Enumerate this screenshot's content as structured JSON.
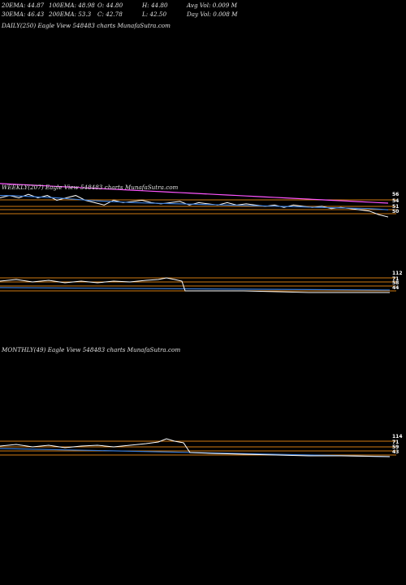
{
  "header": {
    "row1": {
      "ema20": "20EMA: 44.87",
      "ema100": "100EMA: 48.98",
      "open": "O: 44.80",
      "high": "H: 44.80",
      "avg_vol": "Avg Vol: 0.009 M"
    },
    "row2": {
      "ema30": "30EMA: 46.43",
      "ema200": "200EMA: 53.3",
      "close": "C: 42.78",
      "low": "L: 42.50",
      "day_vol": "Day Vol: 0.008 M"
    }
  },
  "panels": {
    "daily": {
      "title": "DAILY(250) Eagle   View  548483 charts MunafaSutra.com"
    },
    "weekly": {
      "title": "WEEKLY(207) Eagle   View  548483 charts MunafaSutra.com"
    },
    "monthly": {
      "title": "MONTHLY(49) Eagle   View  548483 charts MunafaSutra.com"
    }
  },
  "colors": {
    "background": "#000000",
    "price": "#ffffff",
    "ema_fast": "#3a7bd5",
    "ema_slow": "#8fb3ff",
    "ema_long": "#ff55ff",
    "support": "#d07a12"
  },
  "chart_data": [
    {
      "type": "line",
      "name": "DAILY(250)",
      "series": []
    },
    {
      "type": "line",
      "name": "WEEKLY(207)",
      "x": [
        0,
        5,
        10,
        15,
        20,
        25,
        30,
        35,
        40,
        45,
        50,
        55,
        60,
        65,
        70,
        75,
        80,
        85,
        90,
        95,
        100,
        105,
        110,
        115,
        120,
        125,
        130,
        135,
        140,
        145,
        150,
        155,
        160,
        165,
        170,
        175,
        180,
        185,
        190,
        195,
        200,
        205
      ],
      "series": [
        {
          "values": [
            52,
            53,
            52,
            53.5,
            52,
            53,
            51,
            52,
            53,
            51,
            50,
            49,
            51,
            50,
            50.5,
            51,
            50,
            49.5,
            50,
            50.5,
            49,
            50,
            49.5,
            49,
            50,
            49,
            49.5,
            49,
            48.5,
            49,
            48,
            49,
            48.5,
            48,
            48.5,
            47.5,
            48,
            47.5,
            47,
            46.5,
            45,
            44
          ]
        },
        {
          "values": [
            53,
            53,
            52.8,
            52.6,
            52.4,
            52.2,
            52,
            51.7,
            51.4,
            51.1,
            50.8,
            50.6,
            50.4,
            50.2,
            50,
            49.9,
            49.8,
            49.7,
            49.6,
            49.5,
            49.4,
            49.3,
            49.2,
            49.1,
            49,
            48.9,
            48.8,
            48.7,
            48.6,
            48.5,
            48.4,
            48.3,
            48.2,
            48.1,
            48,
            47.9,
            47.8,
            47.7,
            47.6,
            47.5,
            47.3,
            47
          ]
        },
        {
          "values": [
            58,
            57.8,
            57.6,
            57.4,
            57.2,
            57,
            56.8,
            56.6,
            56.4,
            56.2,
            56,
            55.8,
            55.6,
            55.4,
            55.2,
            55,
            54.8,
            54.6,
            54.4,
            54.2,
            54,
            53.8,
            53.6,
            53.4,
            53.2,
            53,
            52.8,
            52.6,
            52.4,
            52.2,
            52,
            51.8,
            51.6,
            51.4,
            51.2,
            51,
            50.8,
            50.6,
            50.4,
            50.2,
            50,
            49.8
          ]
        }
      ],
      "support_levels": [
        56,
        54,
        51,
        50
      ],
      "tick_labels": [
        "56",
        "54",
        "51",
        "50"
      ]
    },
    {
      "type": "line",
      "name": "WEEKLY-lower",
      "tick_labels": [
        "112",
        "71",
        "58",
        "44"
      ]
    },
    {
      "type": "line",
      "name": "MONTHLY(49)",
      "tick_labels": [
        "114",
        "71",
        "59",
        "43"
      ]
    }
  ]
}
